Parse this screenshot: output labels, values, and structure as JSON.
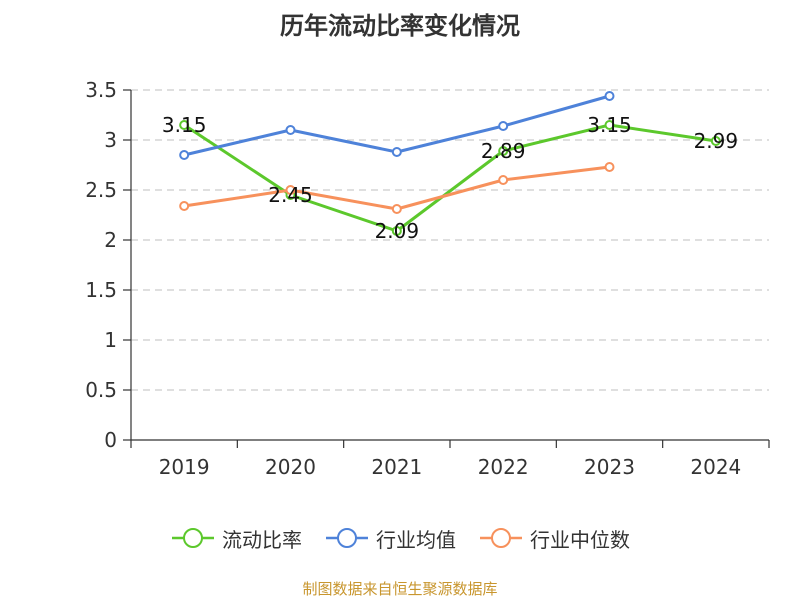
{
  "chart_data": {
    "type": "line",
    "title": "历年流动比率变化情况",
    "categories": [
      "2019",
      "2020",
      "2021",
      "2022",
      "2023",
      "2024"
    ],
    "ylim": [
      0,
      3.5
    ],
    "yticks": [
      "0",
      "0.5",
      "1",
      "1.5",
      "2",
      "2.5",
      "3",
      "3.5"
    ],
    "grid": true,
    "legend_position": "bottom",
    "series": [
      {
        "name": "流动比率",
        "color": "#5cc82c",
        "values": [
          3.15,
          2.45,
          2.09,
          2.89,
          3.15,
          2.99
        ],
        "labels": [
          "3.15",
          "2.45",
          "2.09",
          "2.89",
          "3.15",
          "2.99"
        ]
      },
      {
        "name": "行业均值",
        "color": "#4e82d9",
        "values": [
          2.85,
          3.1,
          2.88,
          3.14,
          3.44,
          null
        ]
      },
      {
        "name": "行业中位数",
        "color": "#f7915c",
        "values": [
          2.34,
          2.5,
          2.31,
          2.6,
          2.73,
          null
        ]
      }
    ]
  },
  "footer": {
    "source": "制图数据来自恒生聚源数据库"
  }
}
